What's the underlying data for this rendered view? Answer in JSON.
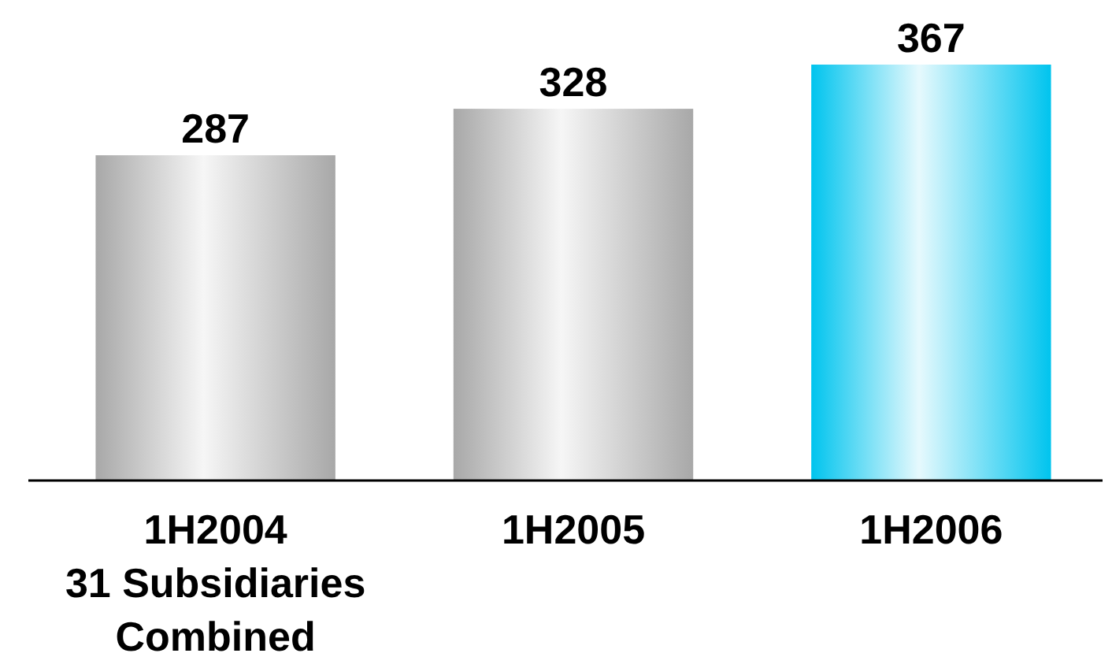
{
  "chart_data": {
    "type": "bar",
    "categories": [
      "1H2004\n31 Subsidiaries\nCombined",
      "1H2005",
      "1H2006"
    ],
    "values": [
      287,
      328,
      367
    ],
    "colors": [
      "#a8a8a8",
      "#a8a8a8",
      "#00c4ee"
    ],
    "data_labels": true
  }
}
